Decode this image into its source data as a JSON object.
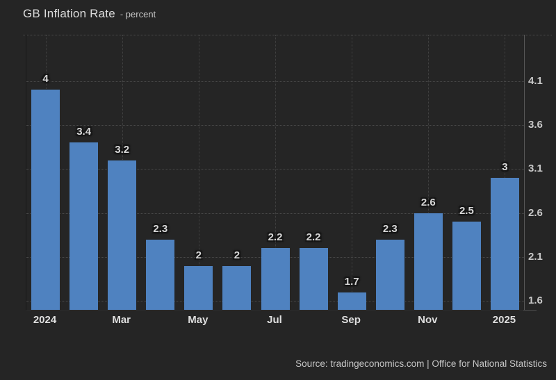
{
  "header": {
    "title": "GB Inflation Rate",
    "subtitle": "- percent"
  },
  "footer": {
    "source": "Source: tradingeconomics.com | Office for National Statistics"
  },
  "colors": {
    "background": "#252525",
    "bar": "#4f82c0",
    "grid_dotted": "#4a4a4a",
    "grid_vertical": "#424242",
    "right_axis_line": "#585858",
    "title_text": "#dbdbdb",
    "subtitle_text": "#c6c6c6",
    "bar_label_text": "#d8d8d8",
    "x_tick_text": "#dfdfdf",
    "y_tick_text": "#c9c9c9",
    "source_text": "#c6c6c6"
  },
  "chart_data": {
    "type": "bar",
    "title": "GB Inflation Rate",
    "ylabel": "percent",
    "categories": [
      "2024",
      "",
      "Mar",
      "",
      "May",
      "",
      "Jul",
      "",
      "Sep",
      "",
      "Nov",
      "",
      "2025"
    ],
    "values": [
      4,
      3.4,
      3.2,
      2.3,
      2,
      2,
      2.2,
      2.2,
      1.7,
      2.3,
      2.6,
      2.5,
      3
    ],
    "bar_labels": [
      "4",
      "3.4",
      "3.2",
      "2.3",
      "2",
      "2",
      "2.2",
      "2.2",
      "1.7",
      "2.3",
      "2.6",
      "2.5",
      "3"
    ],
    "y_ticks": [
      4.1,
      3.6,
      3.1,
      2.6,
      2.1,
      1.6
    ],
    "ylim": [
      1.5,
      4.625
    ],
    "grid": true,
    "legend_position": "none",
    "y_axis_side": "right"
  }
}
